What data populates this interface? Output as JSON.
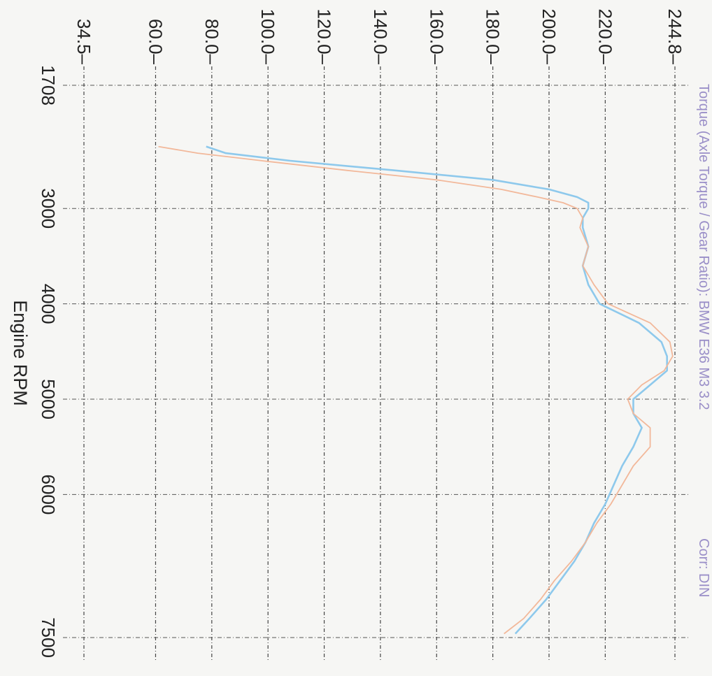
{
  "page": {
    "header_text": "Torque (Axle Torque / Gear Ratio): BMW E36 M3 3.2",
    "corr_text": "Corr: DIN"
  },
  "chart_data": {
    "type": "line",
    "orientation": "rotated-90-clockwise",
    "xlabel": "Engine RPM",
    "x_ticks": [
      "1708",
      "3000",
      "4000",
      "5000",
      "6000",
      "7500"
    ],
    "x_tick_values": [
      1708,
      3000,
      4000,
      5000,
      6000,
      7500
    ],
    "xlim": [
      1708,
      7500
    ],
    "y_ticks": [
      "34.5",
      "60.0",
      "80.0",
      "100.0",
      "120.0",
      "140.0",
      "160.0",
      "180.0",
      "200.0",
      "220.0",
      "244.8"
    ],
    "y_tick_values": [
      34.5,
      60.0,
      80.0,
      100.0,
      120.0,
      140.0,
      160.0,
      180.0,
      200.0,
      220.0,
      244.8
    ],
    "ylim": [
      34.5,
      244.8
    ],
    "grid": true,
    "series": [
      {
        "color": "#8ec9ec",
        "x": [
          2350,
          2420,
          2500,
          2600,
          2700,
          2800,
          2880,
          2940,
          3000,
          3100,
          3200,
          3400,
          3600,
          3800,
          4000,
          4200,
          4400,
          4550,
          4700,
          4850,
          5000,
          5150,
          5300,
          5500,
          5700,
          5900,
          6100,
          6300,
          6500,
          6700,
          6900,
          7100,
          7300,
          7460
        ],
        "y": [
          78,
          85,
          108,
          145,
          180,
          200,
          210,
          214,
          214,
          212,
          212,
          214,
          212,
          214,
          218,
          232,
          240,
          242,
          242,
          236,
          230,
          230,
          233,
          230,
          226,
          223,
          220,
          216,
          213,
          209,
          204,
          199,
          193,
          188
        ]
      },
      {
        "color": "#f2b89a",
        "x": [
          2350,
          2420,
          2500,
          2600,
          2700,
          2800,
          2880,
          2940,
          3000,
          3100,
          3200,
          3400,
          3600,
          3800,
          4000,
          4200,
          4400,
          4550,
          4700,
          4850,
          5000,
          5150,
          5300,
          5500,
          5700,
          5900,
          6100,
          6300,
          6500,
          6700,
          6900,
          7100,
          7300,
          7460
        ],
        "y": [
          61,
          75,
          98,
          128,
          160,
          183,
          196,
          205,
          210,
          212,
          211,
          214,
          212,
          216,
          221,
          236,
          243,
          244,
          241,
          233,
          228,
          230,
          236,
          236,
          230,
          226,
          222,
          217,
          213,
          208,
          202,
          197,
          191,
          184
        ]
      }
    ]
  }
}
